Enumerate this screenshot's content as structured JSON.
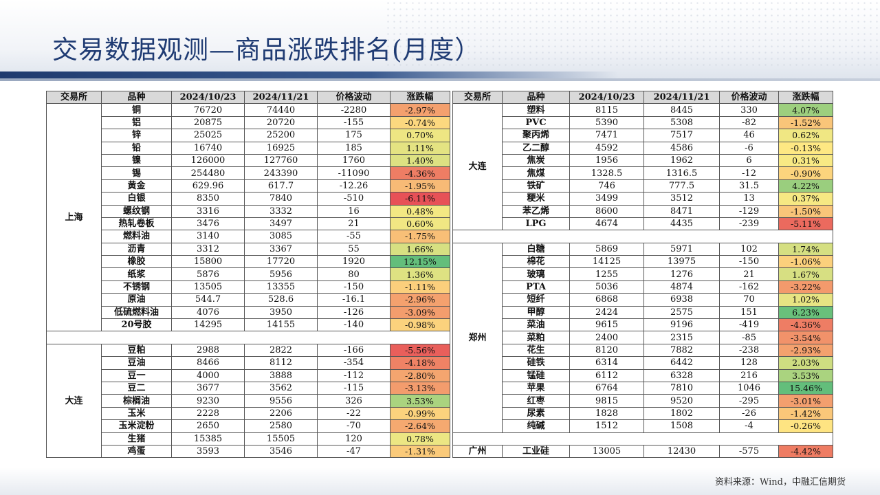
{
  "title": "交易数据观测—商品涨跌排名(月度）",
  "source": "资料来源：Wind，中融汇信期货",
  "headers": [
    "交易所",
    "品种",
    "2024/10/23",
    "2024/11/21",
    "价格波动",
    "涨跌幅"
  ],
  "left_groups": [
    {
      "exchange": "上海",
      "rows": [
        {
          "name": "铜",
          "d1": "76720",
          "d2": "74440",
          "chg": "-2280",
          "pct": "-2.97%"
        },
        {
          "name": "铝",
          "d1": "20875",
          "d2": "20720",
          "chg": "-155",
          "pct": "-0.74%"
        },
        {
          "name": "锌",
          "d1": "25025",
          "d2": "25200",
          "chg": "175",
          "pct": "0.70%"
        },
        {
          "name": "铅",
          "d1": "16740",
          "d2": "16925",
          "chg": "185",
          "pct": "1.11%"
        },
        {
          "name": "镍",
          "d1": "126000",
          "d2": "127760",
          "chg": "1760",
          "pct": "1.40%"
        },
        {
          "name": "锡",
          "d1": "254480",
          "d2": "243390",
          "chg": "-11090",
          "pct": "-4.36%"
        },
        {
          "name": "黄金",
          "d1": "629.96",
          "d2": "617.7",
          "chg": "-12.26",
          "pct": "-1.95%"
        },
        {
          "name": "白银",
          "d1": "8350",
          "d2": "7840",
          "chg": "-510",
          "pct": "-6.11%"
        },
        {
          "name": "螺纹钢",
          "d1": "3316",
          "d2": "3332",
          "chg": "16",
          "pct": "0.48%"
        },
        {
          "name": "热轧卷板",
          "d1": "3476",
          "d2": "3497",
          "chg": "21",
          "pct": "0.60%"
        },
        {
          "name": "燃料油",
          "d1": "3140",
          "d2": "3085",
          "chg": "-55",
          "pct": "-1.75%"
        },
        {
          "name": "沥青",
          "d1": "3312",
          "d2": "3367",
          "chg": "55",
          "pct": "1.66%"
        },
        {
          "name": "橡胶",
          "d1": "15800",
          "d2": "17720",
          "chg": "1920",
          "pct": "12.15%"
        },
        {
          "name": "纸浆",
          "d1": "5876",
          "d2": "5956",
          "chg": "80",
          "pct": "1.36%"
        },
        {
          "name": "不锈钢",
          "d1": "13505",
          "d2": "13355",
          "chg": "-150",
          "pct": "-1.11%"
        },
        {
          "name": "原油",
          "d1": "544.7",
          "d2": "528.6",
          "chg": "-16.1",
          "pct": "-2.96%"
        },
        {
          "name": "低硫燃料油",
          "d1": "4076",
          "d2": "3950",
          "chg": "-126",
          "pct": "-3.09%"
        },
        {
          "name": "20号胶",
          "d1": "14295",
          "d2": "14155",
          "chg": "-140",
          "pct": "-0.98%"
        }
      ]
    },
    {
      "exchange": "大连",
      "rows": [
        {
          "name": "豆粕",
          "d1": "2988",
          "d2": "2822",
          "chg": "-166",
          "pct": "-5.56%"
        },
        {
          "name": "豆油",
          "d1": "8466",
          "d2": "8112",
          "chg": "-354",
          "pct": "-4.18%"
        },
        {
          "name": "豆一",
          "d1": "4000",
          "d2": "3888",
          "chg": "-112",
          "pct": "-2.80%"
        },
        {
          "name": "豆二",
          "d1": "3677",
          "d2": "3562",
          "chg": "-115",
          "pct": "-3.13%"
        },
        {
          "name": "棕榈油",
          "d1": "9230",
          "d2": "9556",
          "chg": "326",
          "pct": "3.53%"
        },
        {
          "name": "玉米",
          "d1": "2228",
          "d2": "2206",
          "chg": "-22",
          "pct": "-0.99%"
        },
        {
          "name": "玉米淀粉",
          "d1": "2650",
          "d2": "2580",
          "chg": "-70",
          "pct": "-2.64%"
        },
        {
          "name": "生猪",
          "d1": "15385",
          "d2": "15505",
          "chg": "120",
          "pct": "0.78%"
        },
        {
          "name": "鸡蛋",
          "d1": "3593",
          "d2": "3546",
          "chg": "-47",
          "pct": "-1.31%"
        }
      ]
    }
  ],
  "right_groups": [
    {
      "exchange": "大连",
      "rows": [
        {
          "name": "塑料",
          "d1": "8115",
          "d2": "8445",
          "chg": "330",
          "pct": "4.07%"
        },
        {
          "name": "PVC",
          "d1": "5390",
          "d2": "5308",
          "chg": "-82",
          "pct": "-1.52%"
        },
        {
          "name": "聚丙烯",
          "d1": "7471",
          "d2": "7517",
          "chg": "46",
          "pct": "0.62%"
        },
        {
          "name": "乙二醇",
          "d1": "4592",
          "d2": "4586",
          "chg": "-6",
          "pct": "-0.13%"
        },
        {
          "name": "焦炭",
          "d1": "1956",
          "d2": "1962",
          "chg": "6",
          "pct": "0.31%"
        },
        {
          "name": "焦煤",
          "d1": "1328.5",
          "d2": "1316.5",
          "chg": "-12",
          "pct": "-0.90%"
        },
        {
          "name": "铁矿",
          "d1": "746",
          "d2": "777.5",
          "chg": "31.5",
          "pct": "4.22%"
        },
        {
          "name": "粳米",
          "d1": "3499",
          "d2": "3512",
          "chg": "13",
          "pct": "0.37%"
        },
        {
          "name": "苯乙烯",
          "d1": "8600",
          "d2": "8471",
          "chg": "-129",
          "pct": "-1.50%"
        },
        {
          "name": "LPG",
          "d1": "4674",
          "d2": "4435",
          "chg": "-239",
          "pct": "-5.11%"
        }
      ]
    },
    {
      "exchange": "郑州",
      "rows": [
        {
          "name": "白糖",
          "d1": "5869",
          "d2": "5971",
          "chg": "102",
          "pct": "1.74%"
        },
        {
          "name": "棉花",
          "d1": "14125",
          "d2": "13975",
          "chg": "-150",
          "pct": "-1.06%"
        },
        {
          "name": "玻璃",
          "d1": "1255",
          "d2": "1276",
          "chg": "21",
          "pct": "1.67%"
        },
        {
          "name": "PTA",
          "d1": "5036",
          "d2": "4874",
          "chg": "-162",
          "pct": "-3.22%"
        },
        {
          "name": "短纤",
          "d1": "6868",
          "d2": "6938",
          "chg": "70",
          "pct": "1.02%"
        },
        {
          "name": "甲醇",
          "d1": "2424",
          "d2": "2575",
          "chg": "151",
          "pct": "6.23%"
        },
        {
          "name": "菜油",
          "d1": "9615",
          "d2": "9196",
          "chg": "-419",
          "pct": "-4.36%"
        },
        {
          "name": "菜粕",
          "d1": "2400",
          "d2": "2315",
          "chg": "-85",
          "pct": "-3.54%"
        },
        {
          "name": "花生",
          "d1": "8120",
          "d2": "7882",
          "chg": "-238",
          "pct": "-2.93%"
        },
        {
          "name": "硅铁",
          "d1": "6314",
          "d2": "6442",
          "chg": "128",
          "pct": "2.03%"
        },
        {
          "name": "锰硅",
          "d1": "6112",
          "d2": "6328",
          "chg": "216",
          "pct": "3.53%"
        },
        {
          "name": "苹果",
          "d1": "6764",
          "d2": "7810",
          "chg": "1046",
          "pct": "15.46%"
        },
        {
          "name": "红枣",
          "d1": "9815",
          "d2": "9520",
          "chg": "-295",
          "pct": "-3.01%"
        },
        {
          "name": "尿素",
          "d1": "1828",
          "d2": "1802",
          "chg": "-26",
          "pct": "-1.42%"
        },
        {
          "name": "纯碱",
          "d1": "1512",
          "d2": "1508",
          "chg": "-4",
          "pct": "-0.26%"
        }
      ]
    },
    {
      "exchange": "广州",
      "rows": [
        {
          "name": "工业硅",
          "d1": "13005",
          "d2": "12430",
          "chg": "-575",
          "pct": "-4.42%"
        }
      ]
    }
  ]
}
